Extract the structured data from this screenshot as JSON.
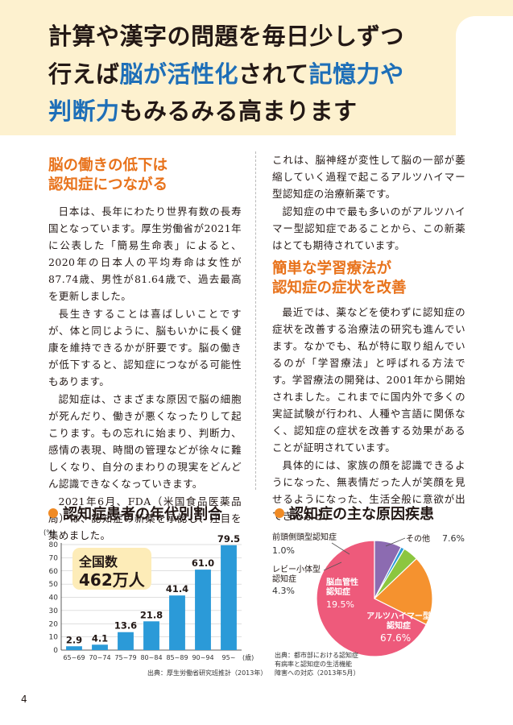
{
  "header": {
    "line1": "計算や漢字の問題を毎日少しずつ",
    "line2": [
      "行えば",
      "脳が活性化",
      "されて",
      "記憶力や"
    ],
    "line3": [
      "判断力",
      "もみるみる高まります"
    ]
  },
  "section1": {
    "heading": [
      "脳の働きの低下は",
      "認知症につながる"
    ],
    "paragraphs": [
      "日本は、長年にわたり世界有数の長寿国となっています。厚生労働省が2021年に公表した「簡易生命表」によると、2020年の日本人の平均寿命は女性が87.74歳、男性が81.64歳で、過去最高を更新しました。",
      "長生きすることは喜ばしいことですが、体と同じように、脳もいかに長く健康を維持できるかが肝要です。脳の働きが低下すると、認知症につながる可能性もあります。",
      "認知症は、さまざまな原因で脳の細胞が死んだり、働きが悪くなったりして起こります。もの忘れに始まり、判断力、感情の表現、時間の管理などが徐々に難しくなり、自分のまわりの現実をどんどん認識できなくなっていきます。",
      "2021年6月、FDA（米国食品医薬品局）は、認知症の新薬を承認し、注目を集めました。"
    ]
  },
  "section2": {
    "paragraphs": [
      "これは、脳神経が変性して脳の一部が萎縮していく過程で起こるアルツハイマー型認知症の治療新薬です。",
      "認知症の中で最も多いのがアルツハイマー型認知症であることから、この新薬はとても期待されています。"
    ]
  },
  "section3": {
    "heading": [
      "簡単な学習療法が",
      "認知症の症状を改善"
    ],
    "paragraphs": [
      "最近では、薬などを使わずに認知症の症状を改善する治療法の研究も進んでいます。なかでも、私が特に取り組んでいるのが「学習療法」と呼ばれる方法です。学習療法の開発は、2001年から開始されました。これまでに国内外で多くの実証試験が行われ、人種や言語に関係なく、認知症の症状を改善する効果があることが証明されています。",
      "具体的には、家族の顔を認識できるようになった、無表情だった人が笑顔を見せるようになった、生活全般に意欲が出てきたなど、"
    ]
  },
  "chart1": {
    "title": "認知症患者の年代別割合",
    "source": "出典：厚生労働省研究班推計（2013年）",
    "total_label": "全国数",
    "total_value": "462万人",
    "colors": {
      "bar": "#2b9ad8"
    }
  },
  "chart2": {
    "title": "認知症の主な原因疾患",
    "source": [
      "出典：都市部における認知症",
      "有病率と認知症の生活機能",
      "障害への対応（2013年5月）"
    ],
    "slices": [
      {
        "name": "アルツハイマー型認知症",
        "label_lines": [
          "アルツハイマー型",
          "認知症"
        ],
        "value": 67.6,
        "pct": "67.6%",
        "color": "#ee5a7b"
      },
      {
        "name": "脳血管性認知症",
        "label_lines": [
          "脳血管性",
          "認知症"
        ],
        "value": 19.5,
        "pct": "19.5%",
        "color": "#f5922f"
      },
      {
        "name": "レビー小体型認知症",
        "label_lines": [
          "レビー小体型",
          "認知症"
        ],
        "value": 4.3,
        "pct": "4.3%",
        "color": "#8cc63f"
      },
      {
        "name": "前頭側頭型認知症",
        "label_lines": [
          "前頭側頭型認知症"
        ],
        "value": 1.0,
        "pct": "1.0%",
        "color": "#2b9ad8"
      },
      {
        "name": "その他",
        "label_lines": [
          "その他"
        ],
        "value": 7.6,
        "pct": "7.6%",
        "color": "#8c6bb1"
      }
    ]
  },
  "chart_data": [
    {
      "type": "bar",
      "title": "認知症患者の年代別割合",
      "categories": [
        "65~69",
        "70~74",
        "75~79",
        "80~84",
        "85~89",
        "90~94",
        "95~"
      ],
      "values": [
        2.9,
        4.1,
        13.6,
        21.8,
        41.4,
        61.0,
        79.5
      ],
      "value_labels": [
        "2.9",
        "4.1",
        "13.6",
        "21.8",
        "41.4",
        "61.0",
        "79.5"
      ],
      "ylabel": "(%)",
      "xunit": "(歳)",
      "ylim": [
        0,
        80
      ],
      "yticks": [
        0,
        10,
        20,
        30,
        40,
        50,
        60,
        70,
        80
      ],
      "grid": true
    },
    {
      "type": "pie",
      "title": "認知症の主な原因疾患",
      "categories": [
        "アルツハイマー型認知症",
        "脳血管性認知症",
        "レビー小体型認知症",
        "前頭側頭型認知症",
        "その他"
      ],
      "values": [
        67.6,
        19.5,
        4.3,
        1.0,
        7.6
      ]
    }
  ],
  "page_number": "4"
}
